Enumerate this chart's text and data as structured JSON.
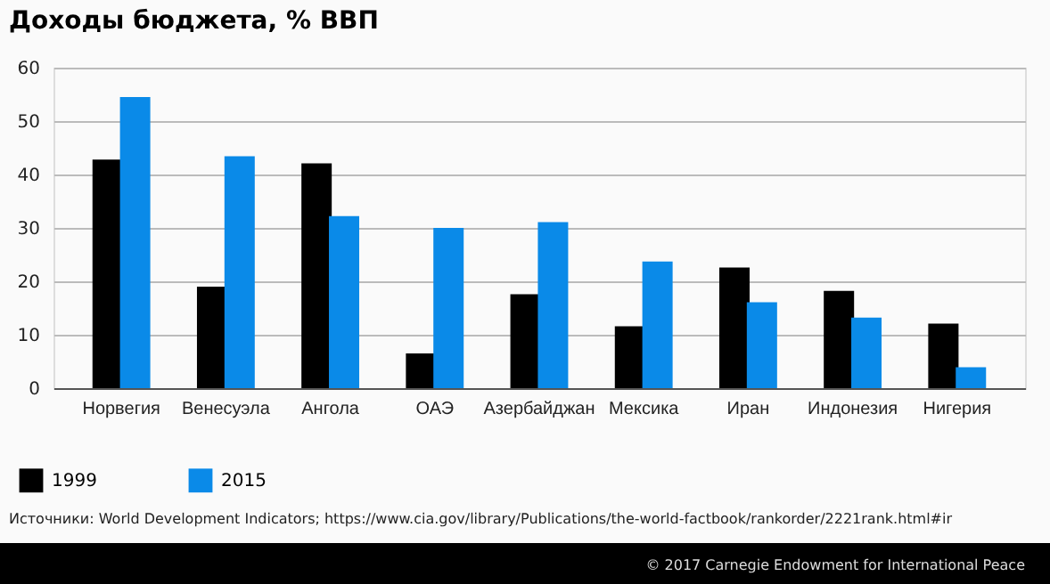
{
  "chart_data": {
    "type": "bar",
    "title": "Доходы бюджета, % ВВП",
    "categories": [
      "Норвегия",
      "Венесуэла",
      "Ангола",
      "ОАЭ",
      "Азербайджан",
      "Мексика",
      "Иран",
      "Индонезия",
      "Нигерия"
    ],
    "series": [
      {
        "name": "1999",
        "color": "#000000",
        "values": [
          42.8,
          19.0,
          42.1,
          6.5,
          17.6,
          11.6,
          22.6,
          18.2,
          12.1
        ]
      },
      {
        "name": "2015",
        "color": "#0a8ae8",
        "values": [
          54.5,
          43.4,
          32.2,
          30.0,
          31.1,
          23.7,
          16.1,
          13.2,
          3.9
        ]
      }
    ],
    "ylim": [
      0,
      60
    ],
    "yticks": [
      0,
      10,
      20,
      30,
      40,
      50,
      60
    ],
    "grid": "y",
    "legend": "bottom left",
    "annotations": [
      "Источники: World Development Indicators; https://www.cia.gov/library/Publications/the-world-factbook/rankorder/2221rank.html#ir",
      "© 2017 Carnegie Endowment for International Peace"
    ]
  }
}
